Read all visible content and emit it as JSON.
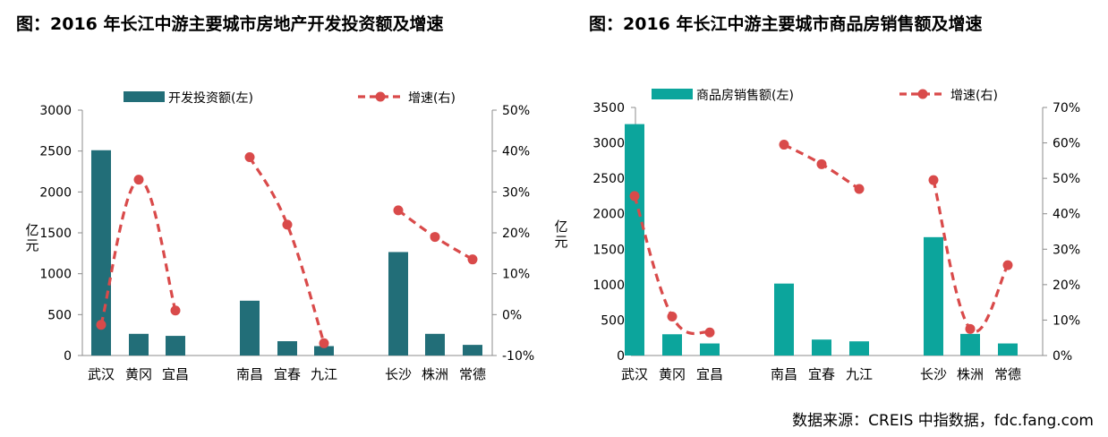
{
  "source_text": "数据来源：CREIS 中指数据，fdc.fang.com",
  "chart_data": [
    {
      "type": "bar",
      "title": "图：2016 年长江中游主要城市房地产开发投资额及增速",
      "ylabel": "亿元",
      "categories": [
        "武汉",
        "黄冈",
        "宜昌",
        "南昌",
        "宜春",
        "九江",
        "长沙",
        "株洲",
        "常德"
      ],
      "groups": [
        [
          0,
          1,
          2
        ],
        [
          3,
          4,
          5
        ],
        [
          6,
          7,
          8
        ]
      ],
      "ylim": [
        0,
        3000
      ],
      "yticks": [
        0,
        500,
        1000,
        1500,
        2000,
        2500,
        3000
      ],
      "y2lim": [
        -10,
        50
      ],
      "y2ticks": [
        -10,
        0,
        10,
        20,
        30,
        40,
        50
      ],
      "y2tick_labels": [
        "-10%",
        "0%",
        "10%",
        "20%",
        "30%",
        "40%",
        "50%"
      ],
      "legend_position": "top",
      "bar_color": "#226E78",
      "line_color": "#D94A4A",
      "series": [
        {
          "name": "开发投资额(左)",
          "axis": "left",
          "kind": "bar",
          "values": [
            2510,
            265,
            240,
            670,
            175,
            115,
            1265,
            265,
            130
          ]
        },
        {
          "name": "增速(右)",
          "axis": "right",
          "kind": "line",
          "values": [
            -2.5,
            33,
            1,
            38.5,
            22,
            -7,
            25.5,
            19,
            13.5
          ]
        }
      ]
    },
    {
      "type": "bar",
      "title": "图：2016 年长江中游主要城市商品房销售额及增速",
      "ylabel": "亿元",
      "categories": [
        "武汉",
        "黄冈",
        "宜昌",
        "南昌",
        "宜春",
        "九江",
        "长沙",
        "株洲",
        "常德"
      ],
      "groups": [
        [
          0,
          1,
          2
        ],
        [
          3,
          4,
          5
        ],
        [
          6,
          7,
          8
        ]
      ],
      "ylim": [
        0,
        3500
      ],
      "yticks": [
        0,
        500,
        1000,
        1500,
        2000,
        2500,
        3000,
        3500
      ],
      "y2lim": [
        0,
        70
      ],
      "y2ticks": [
        0,
        10,
        20,
        30,
        40,
        50,
        60,
        70
      ],
      "y2tick_labels": [
        "0%",
        "10%",
        "20%",
        "30%",
        "40%",
        "50%",
        "60%",
        "70%"
      ],
      "legend_position": "top",
      "bar_color": "#0CA59C",
      "line_color": "#D94A4A",
      "series": [
        {
          "name": "商品房销售额(左)",
          "axis": "left",
          "kind": "bar",
          "values": [
            3265,
            300,
            170,
            1015,
            225,
            200,
            1670,
            305,
            170
          ]
        },
        {
          "name": "增速(右)",
          "axis": "right",
          "kind": "line",
          "values": [
            45,
            11,
            6.5,
            59.5,
            54,
            47,
            49.5,
            7.5,
            25.5
          ]
        }
      ]
    }
  ]
}
